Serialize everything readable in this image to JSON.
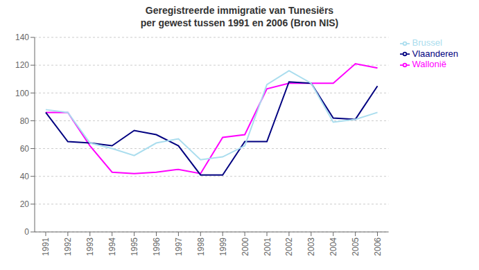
{
  "chart_data": {
    "type": "line",
    "title": "Geregistreerde immigratie van Tunesiërs\nper gewest tussen 1991 en 2006 (Bron NIS)",
    "x": [
      1991,
      1992,
      1993,
      1994,
      1995,
      1996,
      1997,
      1998,
      1999,
      2000,
      2001,
      2002,
      2003,
      2004,
      2005,
      2006
    ],
    "series": [
      {
        "name": "Wallonië",
        "color": "#FF00FF",
        "values": [
          86,
          86,
          62,
          43,
          42,
          43,
          45,
          42,
          68,
          70,
          103,
          107,
          107,
          107,
          121,
          118
        ]
      },
      {
        "name": "Vlaanderen",
        "color": "#000080",
        "values": [
          86,
          65,
          64,
          62,
          73,
          70,
          62,
          41,
          41,
          65,
          65,
          108,
          107,
          82,
          81,
          105
        ]
      },
      {
        "name": "Brussel",
        "color": "#AADDEE",
        "values": [
          88,
          86,
          64,
          60,
          55,
          64,
          67,
          52,
          54,
          62,
          106,
          116,
          107,
          79,
          81,
          86
        ]
      }
    ],
    "xlim": [
      1990.5,
      2006.5
    ],
    "xticks": [
      1991,
      1992,
      1993,
      1994,
      1995,
      1996,
      1997,
      1998,
      1999,
      2000,
      2001,
      2002,
      2003,
      2004,
      2005,
      2006
    ],
    "ylim": [
      0,
      140
    ],
    "yticks": [
      0,
      20,
      40,
      60,
      80,
      100,
      120,
      140
    ],
    "grid": true,
    "legend": "right"
  }
}
